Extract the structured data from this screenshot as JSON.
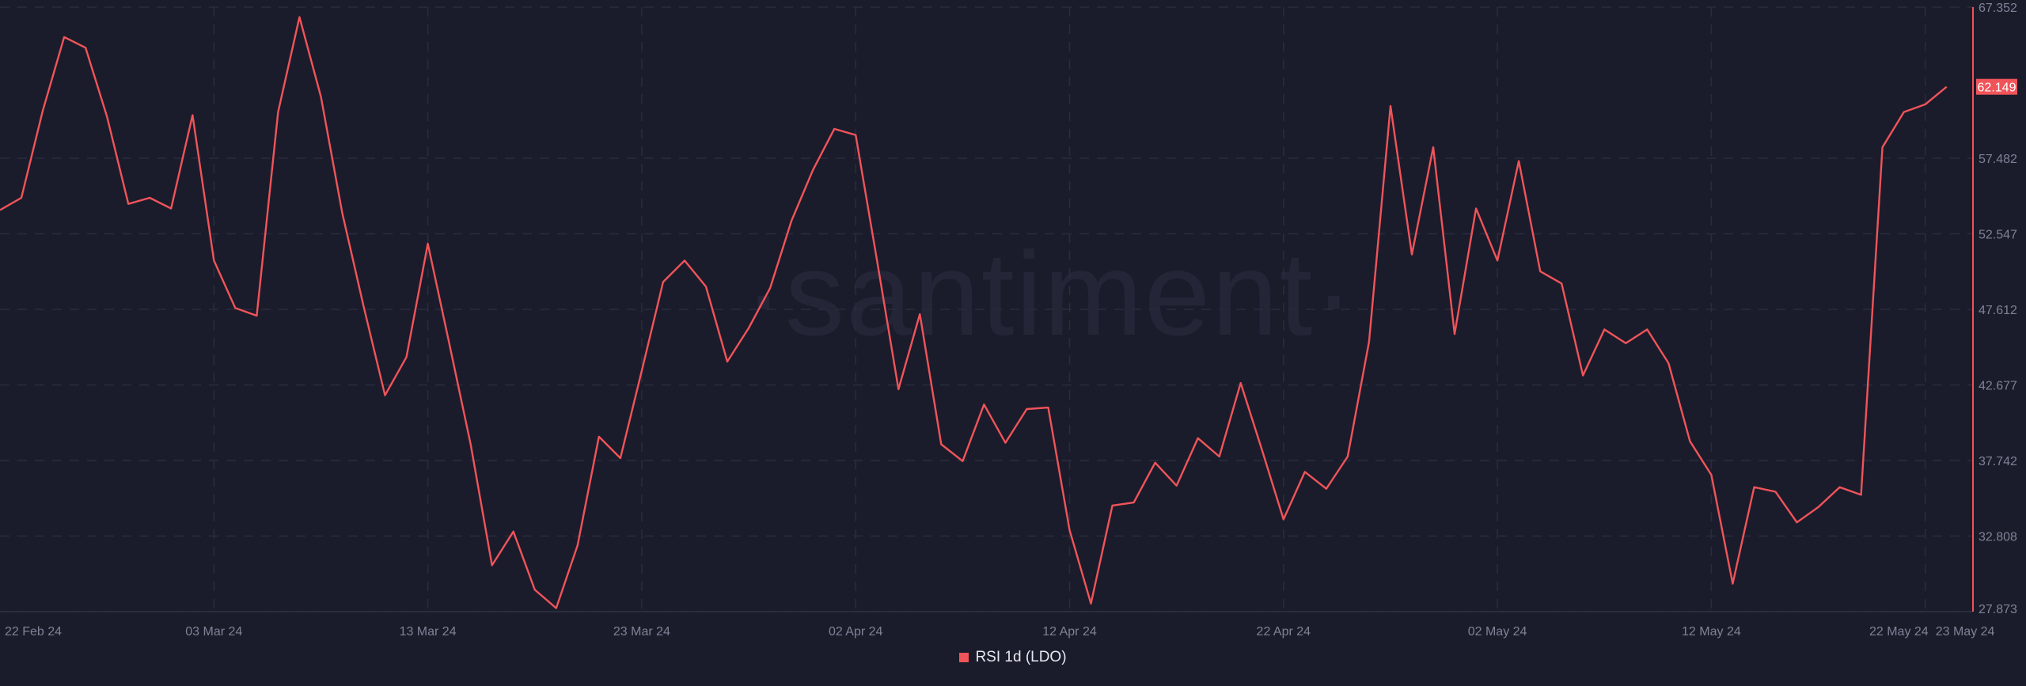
{
  "watermark": "·santiment·",
  "chart_data": {
    "type": "line",
    "title": "",
    "xlabel": "",
    "ylabel": "",
    "grid": true,
    "legend_position": "bottom",
    "line_color": "#f0545a",
    "background": "#1b1c2b",
    "ylim": [
      27.873,
      67.352
    ],
    "y_ticks": [
      "67.352",
      "62.149",
      "57.482",
      "52.547",
      "47.612",
      "42.677",
      "37.742",
      "32.808",
      "27.873"
    ],
    "x_ticks": [
      "22 Feb 24",
      "03 Mar 24",
      "13 Mar 24",
      "23 Mar 24",
      "02 Apr 24",
      "12 Apr 24",
      "22 Apr 24",
      "02 May 24",
      "12 May 24",
      "22 May 24",
      "23 May 24"
    ],
    "x_start": "2024-02-22",
    "x_end": "2024-05-23",
    "last_value_label": "62.149",
    "series": [
      {
        "name": "RSI 1d (LDO)",
        "values": [
          54.1,
          54.9,
          60.6,
          65.4,
          64.7,
          60.2,
          54.5,
          54.9,
          54.2,
          60.3,
          50.8,
          47.7,
          47.2,
          60.5,
          66.7,
          61.5,
          53.9,
          47.8,
          42.0,
          44.5,
          51.9,
          45.4,
          38.8,
          30.9,
          33.1,
          29.3,
          28.1,
          32.2,
          39.3,
          37.9,
          43.6,
          49.4,
          50.8,
          49.1,
          44.2,
          46.4,
          49.0,
          53.4,
          56.7,
          59.4,
          59.0,
          50.8,
          42.4,
          47.3,
          38.8,
          37.7,
          41.4,
          38.9,
          41.1,
          41.2,
          33.2,
          28.4,
          34.8,
          35.0,
          37.6,
          36.1,
          39.2,
          38.0,
          42.8,
          38.4,
          33.9,
          37.0,
          35.9,
          38.0,
          45.5,
          60.9,
          51.2,
          58.2,
          46.0,
          54.2,
          50.8,
          57.3,
          50.1,
          49.3,
          43.3,
          46.3,
          45.4,
          46.3,
          44.1,
          39.0,
          36.8,
          29.7,
          36.0,
          35.7,
          33.7,
          34.7,
          36.0,
          35.5,
          58.2,
          60.5,
          61.0,
          62.149
        ]
      }
    ]
  }
}
